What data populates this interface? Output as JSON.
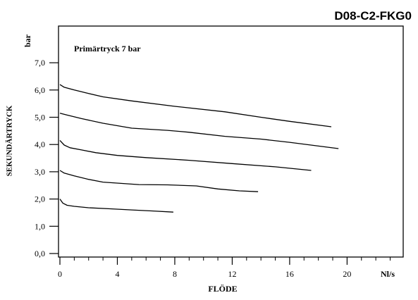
{
  "chart_data": {
    "type": "line",
    "title": "D08-C2-FKG0",
    "annotation": "Primärtryck 7 bar",
    "xlabel": "FLÖDE",
    "xunit": "Nl/s",
    "ylabel": "SEKUNDÄRTRYCK",
    "yunit": "bar",
    "xlim": [
      0,
      23.5
    ],
    "ylim": [
      0,
      7.5
    ],
    "x_ticks": [
      0,
      4,
      8,
      12,
      16,
      20
    ],
    "x_tick_labels": [
      "0",
      "4",
      "8",
      "12",
      "16",
      "20"
    ],
    "x_minor_ticks": [
      1,
      2,
      3,
      5,
      6,
      7,
      9,
      10,
      11,
      13,
      14,
      15,
      17,
      18,
      19,
      21,
      22,
      23
    ],
    "y_ticks": [
      0,
      1,
      2,
      3,
      4,
      5,
      6,
      7
    ],
    "y_tick_labels": [
      "0,0",
      "1,0",
      "2,0",
      "3,0",
      "4,0",
      "5,0",
      "6,0",
      "7,0"
    ],
    "grid": false,
    "legend": "none",
    "series": [
      {
        "x": [
          0,
          0.3,
          1,
          2,
          3,
          5,
          8,
          11.5,
          14,
          16,
          18.9
        ],
        "y": [
          6.2,
          6.1,
          6.0,
          5.87,
          5.75,
          5.6,
          5.4,
          5.2,
          5.0,
          4.85,
          4.65
        ]
      },
      {
        "x": [
          0,
          0.5,
          1.5,
          3,
          5,
          7.5,
          9,
          11.5,
          14,
          16,
          19.4
        ],
        "y": [
          5.15,
          5.08,
          4.95,
          4.78,
          4.6,
          4.52,
          4.45,
          4.3,
          4.2,
          4.08,
          3.85
        ]
      },
      {
        "x": [
          0,
          0.3,
          0.7,
          1.5,
          2.5,
          4,
          6,
          9,
          12,
          15,
          17.5
        ],
        "y": [
          4.15,
          3.98,
          3.88,
          3.8,
          3.7,
          3.6,
          3.52,
          3.42,
          3.3,
          3.18,
          3.05
        ]
      },
      {
        "x": [
          0,
          0.3,
          1,
          2,
          3,
          5.5,
          7.5,
          9.5,
          11,
          12.5,
          13.8
        ],
        "y": [
          3.05,
          2.95,
          2.85,
          2.72,
          2.62,
          2.53,
          2.52,
          2.48,
          2.37,
          2.3,
          2.27
        ]
      },
      {
        "x": [
          0,
          0.2,
          0.5,
          1,
          2,
          3.5,
          5,
          6.5,
          7.9
        ],
        "y": [
          2.0,
          1.85,
          1.77,
          1.73,
          1.68,
          1.64,
          1.6,
          1.56,
          1.52
        ]
      }
    ]
  }
}
